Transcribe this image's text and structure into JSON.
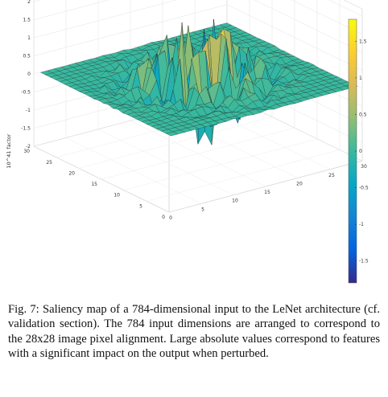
{
  "chart_data": {
    "type": "surface",
    "zlabel": "10^41 factor",
    "grid": true,
    "colorbar": "right",
    "colormap": "parula",
    "grid_size": [
      28,
      28
    ],
    "x_ticks": [
      "0",
      "5",
      "10",
      "15",
      "20",
      "25",
      "30"
    ],
    "y_ticks": [
      "0",
      "5",
      "10",
      "15",
      "20",
      "25",
      "30"
    ],
    "z_ticks": [
      "2",
      "1.5",
      "1",
      "0.5",
      "0",
      "-0.5",
      "-1",
      "-1.5",
      "-2"
    ],
    "zlim": [
      -2,
      2
    ],
    "colorbar_ticks": [
      "1.5",
      "1",
      "0.5",
      "0",
      "-0.5",
      "-1",
      "-1.5"
    ],
    "clim": [
      -1.8,
      1.8
    ],
    "description": "Near-zero flat border region with strong positive and negative spikes concentrated in the central ~14x14 area of the 28x28 input grid"
  },
  "caption": {
    "text": "Fig. 7: Saliency map of a 784-dimensional input to the LeNet architecture (cf. validation section). The 784 input dimensions are arranged to correspond to the 28x28 image pixel alignment. Large absolute values correspond to features with a significant impact on the output when perturbed."
  }
}
